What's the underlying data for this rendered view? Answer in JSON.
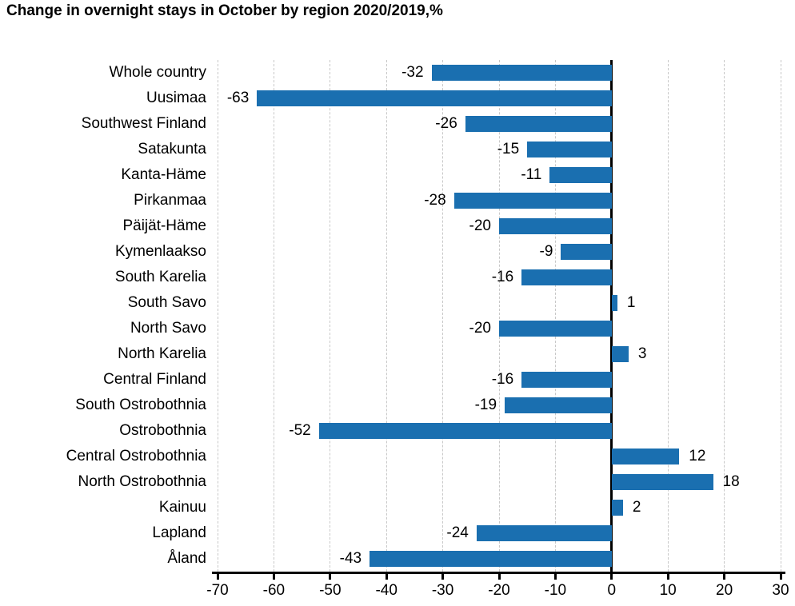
{
  "title": "Change in overnight stays in October by region 2020/2019,%",
  "chart_data": {
    "type": "bar",
    "orientation": "horizontal",
    "title": "Change in overnight stays in October by region 2020/2019,%",
    "categories": [
      "Whole country",
      "Uusimaa",
      "Southwest Finland",
      "Satakunta",
      "Kanta-Häme",
      "Pirkanmaa",
      "Päijät-Häme",
      "Kymenlaakso",
      "South Karelia",
      "South Savo",
      "North Savo",
      "North Karelia",
      "Central Finland",
      "South Ostrobothnia",
      "Ostrobothnia",
      "Central Ostrobothnia",
      "North Ostrobothnia",
      "Kainuu",
      "Lapland",
      "Åland"
    ],
    "values": [
      -32,
      -63,
      -26,
      -15,
      -11,
      -28,
      -20,
      -9,
      -16,
      1,
      -20,
      3,
      -16,
      -19,
      -52,
      12,
      18,
      2,
      -24,
      -43
    ],
    "xlabel": "",
    "ylabel": "",
    "xlim": [
      -70,
      30
    ],
    "x_ticks": [
      -70,
      -60,
      -50,
      -40,
      -30,
      -20,
      -10,
      0,
      10,
      20,
      30
    ],
    "grid": true,
    "legend": "none",
    "bar_color": "#1a6fb0",
    "axis_color": "#000000",
    "gridline_color": "#c8c8c8",
    "text_color": "#000000"
  }
}
